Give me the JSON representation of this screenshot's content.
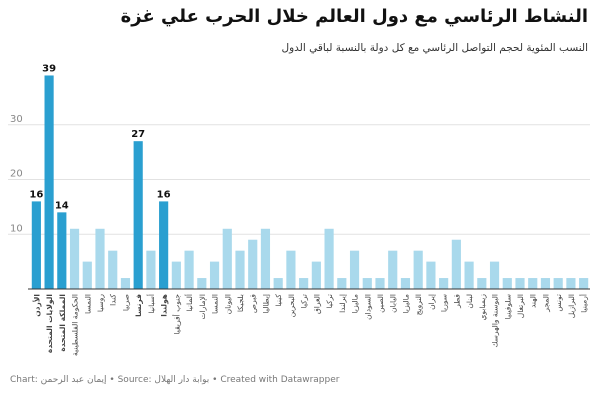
{
  "chart_data": {
    "type": "bar",
    "title": "النشاط الرئاسي مع دول العالم خلال الحرب علي غزة",
    "subtitle": "النسب المئوية لحجم التواصل الرئاسي مع كل دولة بالنسبة لباقي الدول",
    "ylim": [
      0,
      40
    ],
    "yticks": [
      10,
      20,
      30
    ],
    "grid": true,
    "colors": {
      "highlight": "#2a9fd0",
      "normal": "#a9d9ec",
      "grid": "#e2e2e2",
      "axis": "#333333"
    },
    "categories": [
      "الأردن",
      "الولايات المتحدة",
      "المملكة المتحدة",
      "الحكومة الفلسطينية",
      "النمسا",
      "روسيا",
      "كندا",
      "صربيا",
      "فرنسا",
      "أسبانيا",
      "هولندا",
      "جنوب أفريقيا",
      "ألمانيا",
      "الإمارات",
      "النمسا",
      "اليونان",
      "بلجيكا",
      "قبرص",
      "إيطاليا",
      "كينيا",
      "البحرين",
      "تركيا",
      "العراق",
      "تركيا",
      "إيرلندا",
      "ماليزيا",
      "السودان",
      "الصين",
      "اليابان",
      "ماليزيا",
      "النرويج",
      "إيران",
      "سوريا",
      "قطر",
      "لبنان",
      "زيمبابوي",
      "البوسنة والهرسك",
      "سلوفينيا",
      "البرتغال",
      "الهند",
      "المجر",
      "تونس",
      "البرازيل",
      "أرمينيا"
    ],
    "values": [
      16,
      39,
      14,
      11,
      5,
      11,
      7,
      2,
      27,
      7,
      16,
      5,
      7,
      2,
      5,
      11,
      7,
      9,
      11,
      2,
      7,
      2,
      5,
      11,
      2,
      7,
      2,
      2,
      7,
      2,
      7,
      5,
      2,
      9,
      5,
      2,
      5,
      2,
      2,
      2,
      2,
      2,
      2,
      2
    ],
    "labeled": [
      {
        "index": 0,
        "label": "16"
      },
      {
        "index": 1,
        "label": "39"
      },
      {
        "index": 2,
        "label": "14"
      },
      {
        "index": 8,
        "label": "27"
      },
      {
        "index": 10,
        "label": "16"
      }
    ],
    "highlighted": [
      0,
      1,
      2,
      8,
      10
    ]
  },
  "footer": {
    "chart_by": "Chart: إيمان عبد الرحمن",
    "source": "Source: بوابة دار الهلال",
    "created": "Created with Datawrapper",
    "separator": " • "
  }
}
